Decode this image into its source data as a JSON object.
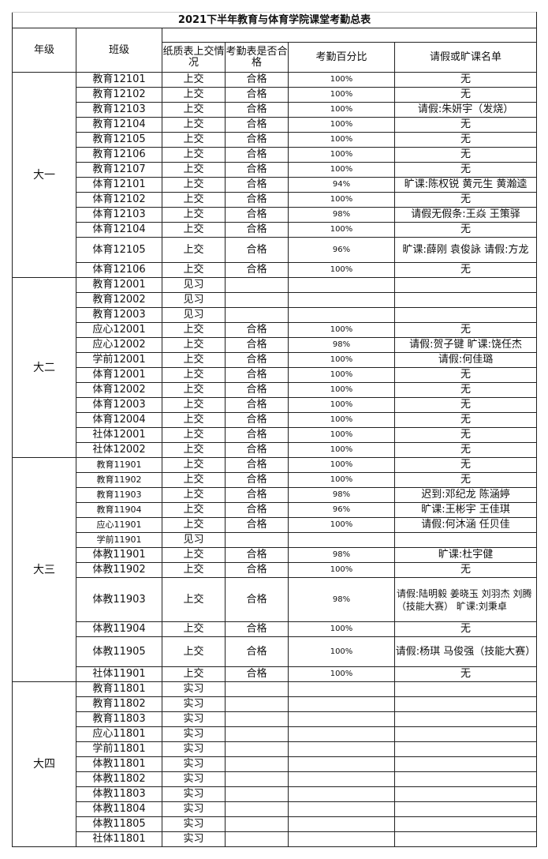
{
  "title": "2021下半年教育与体育学院课堂考勤总表",
  "headers": {
    "grade": "年级",
    "class": "班级",
    "paper_submitted": "纸质表上交情况",
    "qualified": "考勤表是否合格",
    "percent": "考勤百分比",
    "absence_list": "请假或旷课名单"
  },
  "groups": [
    {
      "grade": "大一",
      "rows": [
        [
          "教育12101",
          "上交",
          "合格",
          "100%",
          "无"
        ],
        [
          "教育12102",
          "上交",
          "合格",
          "100%",
          "无"
        ],
        [
          "教育12103",
          "上交",
          "合格",
          "100%",
          "请假:朱妍宇（发烧）"
        ],
        [
          "教育12104",
          "上交",
          "合格",
          "100%",
          "无"
        ],
        [
          "教育12105",
          "上交",
          "合格",
          "100%",
          "无"
        ],
        [
          "教育12106",
          "上交",
          "合格",
          "100%",
          "无"
        ],
        [
          "教育12107",
          "上交",
          "合格",
          "100%",
          "无"
        ],
        [
          "体育12101",
          "上交",
          "合格",
          "94%",
          "旷课:陈权锐 黄元生 黄瀚逵"
        ],
        [
          "体育12102",
          "上交",
          "合格",
          "100%",
          "无"
        ],
        [
          "体育12103",
          "上交",
          "合格",
          "98%",
          "请假无假条:王焱 王策驿"
        ],
        [
          "体育12104",
          "上交",
          "合格",
          "100%",
          "无"
        ],
        [
          "体育12105",
          "上交",
          "合格",
          "96%",
          "旷课:薛刚 袁俊詠  请假:方龙"
        ],
        [
          "体育12106",
          "上交",
          "合格",
          "100%",
          "无"
        ]
      ]
    },
    {
      "grade": "大二",
      "rows": [
        [
          "教育12001",
          "见习",
          "",
          "",
          ""
        ],
        [
          "教育12002",
          "见习",
          "",
          "",
          ""
        ],
        [
          "教育12003",
          "见习",
          "",
          "",
          ""
        ],
        [
          "应心12001",
          "上交",
          "合格",
          "100%",
          "无"
        ],
        [
          "应心12002",
          "上交",
          "合格",
          "98%",
          "请假:贺子键 旷课:饶任杰"
        ],
        [
          "学前12001",
          "上交",
          "合格",
          "100%",
          "请假:何佳璐"
        ],
        [
          "体育12001",
          "上交",
          "合格",
          "100%",
          "无"
        ],
        [
          "体育12002",
          "上交",
          "合格",
          "100%",
          "无"
        ],
        [
          "体育12003",
          "上交",
          "合格",
          "100%",
          "无"
        ],
        [
          "体育12004",
          "上交",
          "合格",
          "100%",
          "无"
        ],
        [
          "社体12001",
          "上交",
          "合格",
          "100%",
          "无"
        ],
        [
          "社体12002",
          "上交",
          "合格",
          "100%",
          "无"
        ]
      ]
    },
    {
      "grade": "大三",
      "rows": [
        [
          "教育11901",
          "上交",
          "合格",
          "100%",
          "无"
        ],
        [
          "教育11902",
          "上交",
          "合格",
          "100%",
          "无"
        ],
        [
          "教育11903",
          "上交",
          "合格",
          "98%",
          "迟到:邓纪龙 陈涵婷"
        ],
        [
          "教育11904",
          "上交",
          "合格",
          "96%",
          "旷课:王彬宇 王佳琪"
        ],
        [
          "应心11901",
          "上交",
          "合格",
          "100%",
          "请假:何沐涵 任贝佳"
        ],
        [
          "学前11901",
          "见习",
          "",
          "",
          ""
        ],
        [
          "体教11901",
          "上交",
          "合格",
          "98%",
          "旷课:杜宇健"
        ],
        [
          "体教11902",
          "上交",
          "合格",
          "100%",
          "无"
        ],
        [
          "体教11903",
          "上交",
          "合格",
          "98%",
          "请假:陆明毅 姜晓玉 刘羽杰 刘腾（技能大赛） 旷课:刘秉卓"
        ],
        [
          "体教11904",
          "上交",
          "合格",
          "100%",
          "无"
        ],
        [
          "体教11905",
          "上交",
          "合格",
          "100%",
          "请假:杨琪 马俊强（技能大赛）"
        ],
        [
          "社体11901",
          "上交",
          "合格",
          "100%",
          "无"
        ]
      ]
    },
    {
      "grade": "大四",
      "rows": [
        [
          "教育11801",
          "实习",
          "",
          "",
          ""
        ],
        [
          "教育11802",
          "实习",
          "",
          "",
          ""
        ],
        [
          "教育11803",
          "实习",
          "",
          "",
          ""
        ],
        [
          "应心11801",
          "实习",
          "",
          "",
          ""
        ],
        [
          "学前11801",
          "实习",
          "",
          "",
          ""
        ],
        [
          "体教11801",
          "实习",
          "",
          "",
          ""
        ],
        [
          "体教11802",
          "实习",
          "",
          "",
          ""
        ],
        [
          "体教11803",
          "实习",
          "",
          "",
          ""
        ],
        [
          "体教11804",
          "实习",
          "",
          "",
          ""
        ],
        [
          "体教11805",
          "实习",
          "",
          "",
          ""
        ],
        [
          "社体11801",
          "实习",
          "",
          "",
          ""
        ]
      ]
    }
  ]
}
